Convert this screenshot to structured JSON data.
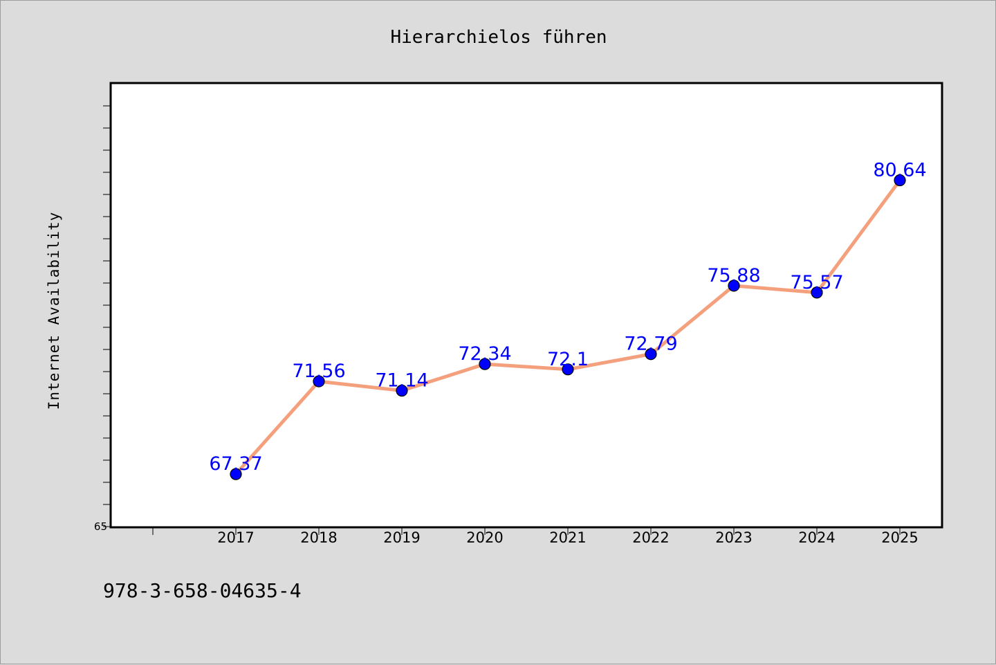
{
  "footnote": "978-3-658-04635-4",
  "colors": {
    "line": "#f4a07c",
    "marker": "#0000ff",
    "label": "#0000ff",
    "background": "#dcdcdc",
    "plot": "#ffffff"
  },
  "chart_data": {
    "type": "line",
    "title": "Hierarchielos führen",
    "xlabel": "",
    "ylabel": "Internet Availability",
    "categories": [
      "2017",
      "2018",
      "2019",
      "2020",
      "2021",
      "2022",
      "2023",
      "2024",
      "2025"
    ],
    "series": [
      {
        "values": [
          67.37,
          71.56,
          71.14,
          72.34,
          72.1,
          72.79,
          75.88,
          75.57,
          80.64
        ]
      }
    ],
    "data_labels": [
      "67.37",
      "71.56",
      "71.14",
      "72.34",
      "72.1",
      "72.79",
      "75.88",
      "75.57",
      "80.64"
    ],
    "ylim": [
      65,
      85
    ],
    "yticks_labeled": [
      "65"
    ],
    "grid": false,
    "legend": "none"
  }
}
